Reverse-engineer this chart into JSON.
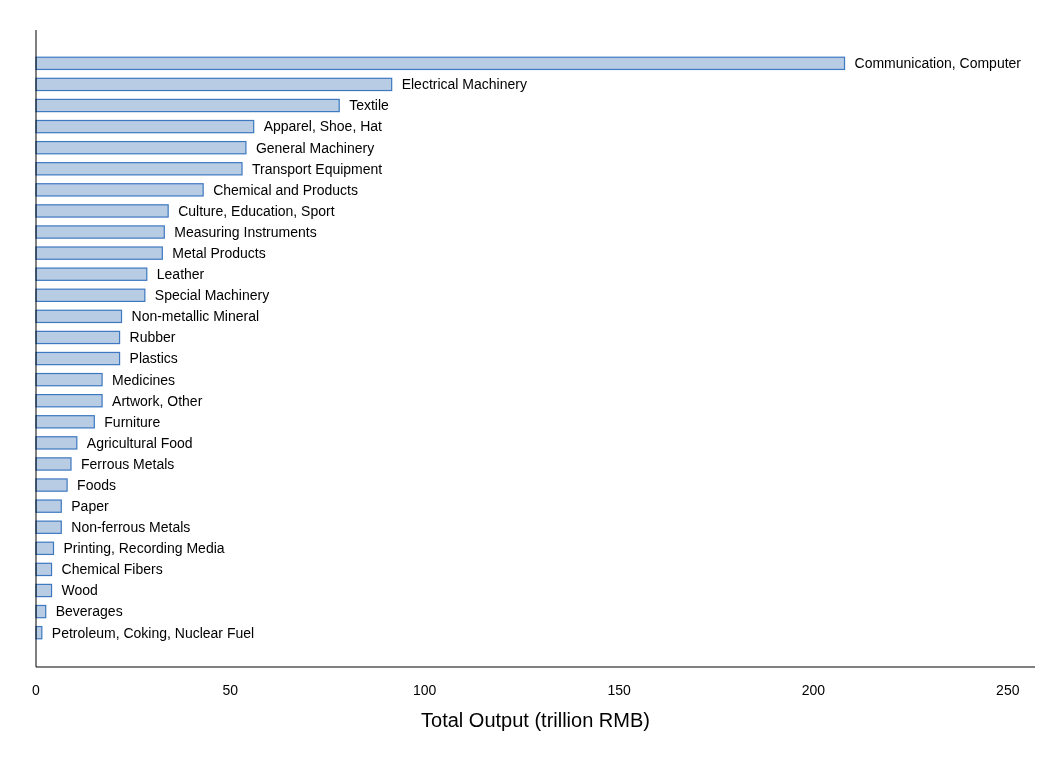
{
  "chart_data": {
    "type": "bar",
    "orientation": "horizontal",
    "xlabel": "Total Output (trillion RMB)",
    "categories": [
      "Communication, Computer",
      "Electrical Machinery",
      "Textile",
      "Apparel, Shoe, Hat",
      "General Machinery",
      "Transport Equipment",
      "Chemical and Products",
      "Culture, Education, Sport",
      "Measuring Instruments",
      "Metal Products",
      "Leather",
      "Special Machinery",
      "Non-metallic Mineral",
      "Rubber",
      "Plastics",
      "Medicines",
      "Artwork, Other",
      "Furniture",
      "Agricultural Food",
      "Ferrous Metals",
      "Foods",
      "Paper",
      "Non-ferrous Metals",
      "Printing, Recording Media",
      "Chemical Fibers",
      "Wood",
      "Beverages",
      "Petroleum, Coking, Nuclear Fuel"
    ],
    "values": [
      208,
      91.5,
      78,
      56,
      54,
      53,
      43,
      34,
      33,
      32.5,
      28.5,
      28,
      22,
      21.5,
      21.5,
      17,
      17,
      15,
      10.5,
      9,
      8,
      6.5,
      6.5,
      4.5,
      4,
      4,
      2.5,
      1.5
    ],
    "color": "#b8cce4",
    "xlim": [
      0,
      257
    ],
    "xticks": [
      0,
      50,
      100,
      150,
      200,
      250
    ],
    "grid": false
  }
}
